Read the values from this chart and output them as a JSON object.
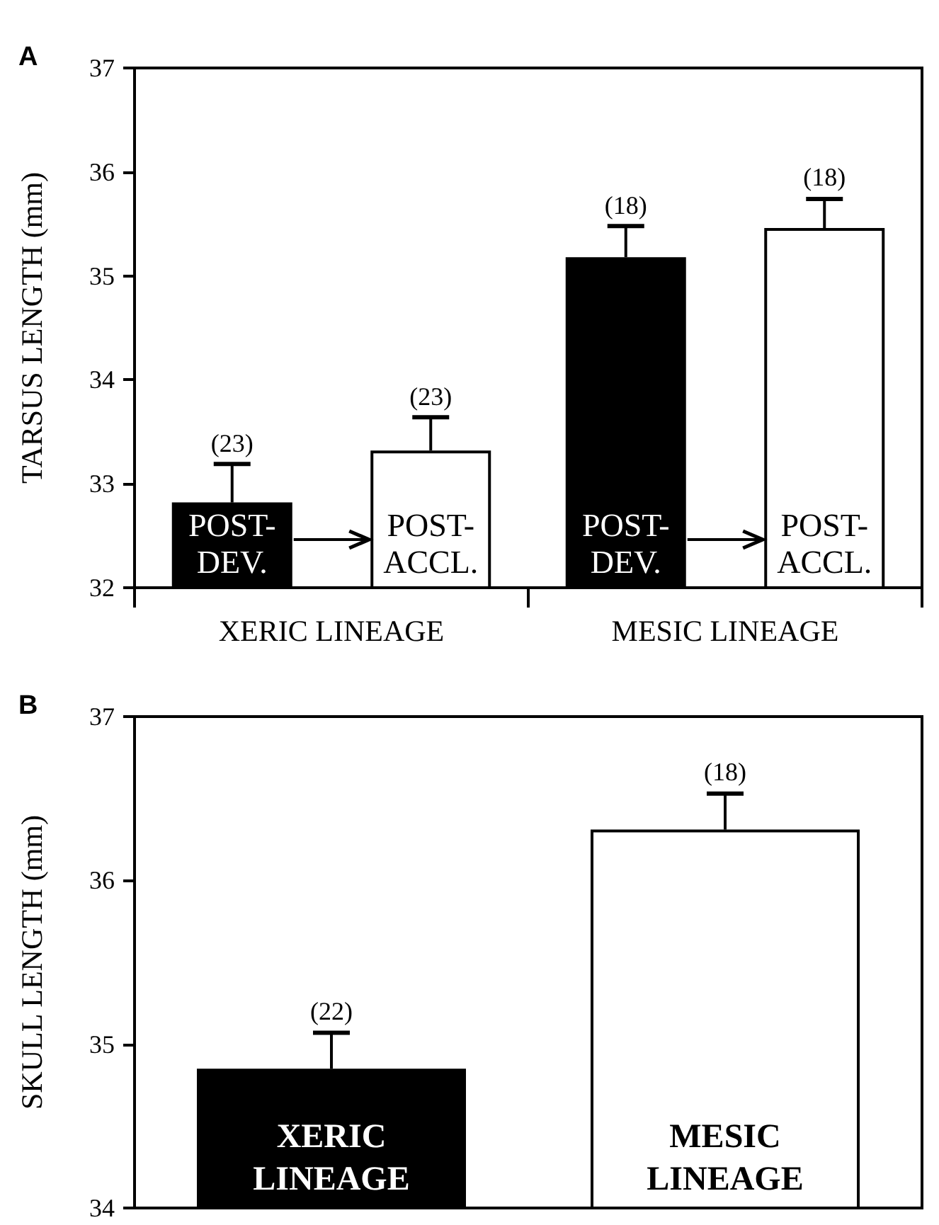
{
  "chart_data": [
    {
      "type": "bar",
      "title": "A",
      "ylabel": "TARSUS LENGTH (mm)",
      "categories": [
        "XERIC LINEAGE",
        "MESIC LINEAGE"
      ],
      "series": [
        {
          "name": "POST-DEV.",
          "color": "#000000",
          "values": [
            32.82,
            35.18
          ],
          "errors": [
            [
              32.82,
              33.19
            ],
            [
              35.18,
              35.48
            ]
          ]
        },
        {
          "name": "POST-ACCL.",
          "color": "#ffffff",
          "values": [
            33.32,
            35.46
          ],
          "errors": [
            [
              33.32,
              33.64
            ],
            [
              35.46,
              35.74
            ]
          ]
        }
      ],
      "ylim": [
        32,
        37
      ],
      "yticks": [
        32,
        33,
        34,
        35,
        36,
        37
      ],
      "annotations": [
        "(23)",
        "(23)",
        "(18)",
        "(18)"
      ]
    },
    {
      "type": "bar",
      "title": "B",
      "ylabel": "SKULL LENGTH (mm)",
      "categories": [
        "XERIC LINEAGE",
        "MESIC LINEAGE"
      ],
      "values": [
        34.85,
        36.31
      ],
      "colors": [
        "#000000",
        "#ffffff"
      ],
      "errors": [
        [
          34.85,
          35.07
        ],
        [
          36.31,
          36.53
        ]
      ],
      "ylim": [
        34,
        37
      ],
      "yticks": [
        34,
        35,
        36,
        37
      ],
      "tick_labels": "y",
      "annotations": [
        {
          "text": "(22)",
          "x": "XERIC LINEAGE",
          "y": 35.07
        },
        {
          "text": "(18)",
          "x": "MESIC LINEAGE",
          "y": 36.53
        }
      ]
    }
  ]
}
